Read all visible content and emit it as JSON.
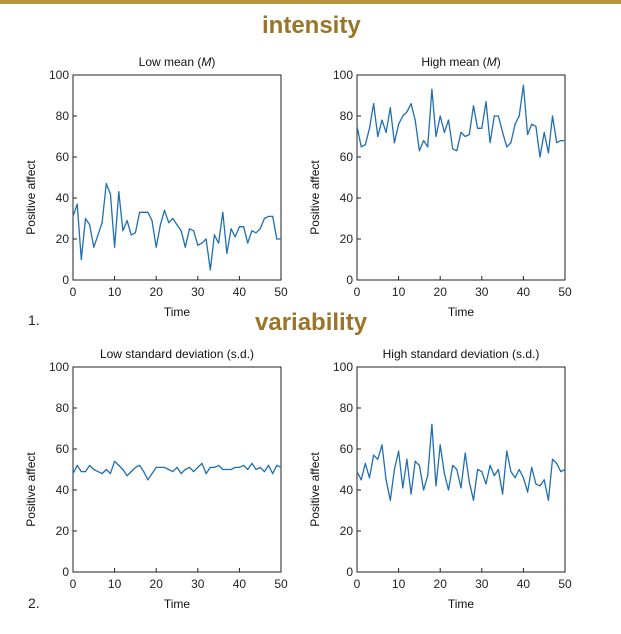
{
  "headings": {
    "intensity": "intensity",
    "variability": "variability"
  },
  "row_labels": [
    "1.",
    "2."
  ],
  "colors": {
    "line": "#1f6fb2",
    "heading": "#9a7528",
    "accent_bar": "#b8963e"
  },
  "chart_data": [
    {
      "type": "line",
      "title": "Low mean (M)",
      "xlabel": "Time",
      "ylabel": "Positive affect",
      "xlim": [
        0,
        50
      ],
      "ylim": [
        0,
        100
      ],
      "xticks": [
        0,
        10,
        20,
        30,
        40,
        50
      ],
      "yticks": [
        0,
        20,
        40,
        60,
        80,
        100
      ],
      "series": [
        {
          "x": [
            0,
            1,
            2,
            3,
            4,
            5,
            6,
            7,
            8,
            9,
            10,
            11,
            12,
            13,
            14,
            15,
            16,
            17,
            18,
            19,
            20,
            21,
            22,
            23,
            24,
            25,
            26,
            27,
            28,
            29,
            30,
            31,
            32,
            33,
            34,
            35,
            36,
            37,
            38,
            39,
            40,
            41,
            42,
            43,
            44,
            45,
            46,
            47,
            48,
            49,
            50
          ],
          "values": [
            31,
            37,
            10,
            30,
            27,
            16,
            22,
            28,
            47,
            42,
            16,
            43,
            24,
            29,
            22,
            23,
            33,
            33,
            33,
            29,
            16,
            27,
            34,
            28,
            30,
            27,
            24,
            16,
            25,
            24,
            17,
            18,
            20,
            5,
            22,
            18,
            33,
            13,
            25,
            21,
            26,
            26,
            18,
            24,
            23,
            25,
            30,
            31,
            31,
            20,
            20
          ]
        }
      ]
    },
    {
      "type": "line",
      "title": "High mean (M)",
      "xlabel": "Time",
      "ylabel": "Positive affect",
      "xlim": [
        0,
        50
      ],
      "ylim": [
        0,
        100
      ],
      "xticks": [
        0,
        10,
        20,
        30,
        40,
        50
      ],
      "yticks": [
        0,
        20,
        40,
        60,
        80,
        100
      ],
      "series": [
        {
          "x": [
            0,
            1,
            2,
            3,
            4,
            5,
            6,
            7,
            8,
            9,
            10,
            11,
            12,
            13,
            14,
            15,
            16,
            17,
            18,
            19,
            20,
            21,
            22,
            23,
            24,
            25,
            26,
            27,
            28,
            29,
            30,
            31,
            32,
            33,
            34,
            35,
            36,
            37,
            38,
            39,
            40,
            41,
            42,
            43,
            44,
            45,
            46,
            47,
            48,
            49,
            50
          ],
          "values": [
            75,
            65,
            66,
            74,
            86,
            70,
            78,
            72,
            84,
            67,
            76,
            80,
            82,
            86,
            78,
            63,
            68,
            65,
            93,
            70,
            80,
            72,
            78,
            64,
            63,
            72,
            70,
            71,
            85,
            74,
            74,
            87,
            67,
            80,
            80,
            72,
            65,
            67,
            76,
            80,
            95,
            71,
            76,
            75,
            60,
            72,
            62,
            80,
            67,
            68,
            68
          ]
        }
      ]
    },
    {
      "type": "line",
      "title": "Low standard deviation (s.d.)",
      "xlabel": "Time",
      "ylabel": "Positive affect",
      "xlim": [
        0,
        50
      ],
      "ylim": [
        0,
        100
      ],
      "xticks": [
        0,
        10,
        20,
        30,
        40,
        50
      ],
      "yticks": [
        0,
        20,
        40,
        60,
        80,
        100
      ],
      "series": [
        {
          "x": [
            0,
            1,
            2,
            3,
            4,
            5,
            6,
            7,
            8,
            9,
            10,
            11,
            12,
            13,
            14,
            15,
            16,
            17,
            18,
            19,
            20,
            21,
            22,
            23,
            24,
            25,
            26,
            27,
            28,
            29,
            30,
            31,
            32,
            33,
            34,
            35,
            36,
            37,
            38,
            39,
            40,
            41,
            42,
            43,
            44,
            45,
            46,
            47,
            48,
            49,
            50
          ],
          "values": [
            48,
            52,
            49,
            49,
            52,
            50,
            49,
            48,
            50,
            48,
            54,
            52,
            50,
            47,
            49,
            51,
            52,
            49,
            45,
            48,
            51,
            51,
            51,
            50,
            49,
            51,
            48,
            50,
            51,
            49,
            51,
            53,
            48,
            51,
            51,
            52,
            50,
            50,
            50,
            51,
            51,
            52,
            50,
            53,
            50,
            51,
            49,
            52,
            48,
            52,
            51
          ]
        }
      ]
    },
    {
      "type": "line",
      "title": "High standard deviation (s.d.)",
      "xlabel": "Time",
      "ylabel": "Positive affect",
      "xlim": [
        0,
        50
      ],
      "ylim": [
        0,
        100
      ],
      "xticks": [
        0,
        10,
        20,
        30,
        40,
        50
      ],
      "yticks": [
        0,
        20,
        40,
        60,
        80,
        100
      ],
      "series": [
        {
          "x": [
            0,
            1,
            2,
            3,
            4,
            5,
            6,
            7,
            8,
            9,
            10,
            11,
            12,
            13,
            14,
            15,
            16,
            17,
            18,
            19,
            20,
            21,
            22,
            23,
            24,
            25,
            26,
            27,
            28,
            29,
            30,
            31,
            32,
            33,
            34,
            35,
            36,
            37,
            38,
            39,
            40,
            41,
            42,
            43,
            44,
            45,
            46,
            47,
            48,
            49,
            50
          ],
          "values": [
            49,
            45,
            53,
            46,
            57,
            55,
            62,
            45,
            35,
            50,
            59,
            41,
            55,
            38,
            54,
            52,
            40,
            47,
            72,
            42,
            62,
            48,
            40,
            52,
            50,
            41,
            58,
            44,
            35,
            50,
            49,
            43,
            52,
            47,
            50,
            38,
            59,
            49,
            46,
            50,
            46,
            39,
            51,
            43,
            42,
            45,
            35,
            55,
            53,
            49,
            50
          ]
        }
      ]
    }
  ]
}
